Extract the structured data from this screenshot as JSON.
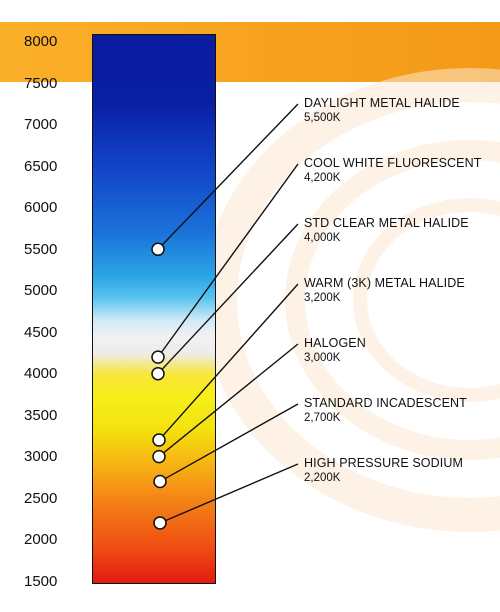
{
  "header_band_color": "#f7a21e",
  "y_axis": {
    "ticks": [
      "8000",
      "7500",
      "7000",
      "6500",
      "6000",
      "5500",
      "5000",
      "4500",
      "4000",
      "3500",
      "3000",
      "2500",
      "2000",
      "1500"
    ]
  },
  "scale": {
    "min_kelvin": 1500,
    "max_kelvin": 8000,
    "gradient_colors": [
      "#0a1c9e",
      "#1a72d9",
      "#58c4ee",
      "#f1f1f1",
      "#f6ee1a",
      "#f47c17",
      "#e21a10"
    ]
  },
  "light_sources": [
    {
      "name": "DAYLIGHT METAL HALIDE",
      "kelvin_label": "5,500K",
      "kelvin": 5500
    },
    {
      "name": "COOL WHITE FLUORESCENT",
      "kelvin_label": "4,200K",
      "kelvin": 4200
    },
    {
      "name": "STD CLEAR METAL HALIDE",
      "kelvin_label": "4,000K",
      "kelvin": 4000
    },
    {
      "name": "WARM (3K) METAL HALIDE",
      "kelvin_label": "3,200K",
      "kelvin": 3200
    },
    {
      "name": "HALOGEN",
      "kelvin_label": "3,000K",
      "kelvin": 3000
    },
    {
      "name": "STANDARD INCADESCENT",
      "kelvin_label": "2,700K",
      "kelvin": 2700
    },
    {
      "name": "HIGH PRESSURE SODIUM",
      "kelvin_label": "2,200K",
      "kelvin": 2200
    }
  ]
}
